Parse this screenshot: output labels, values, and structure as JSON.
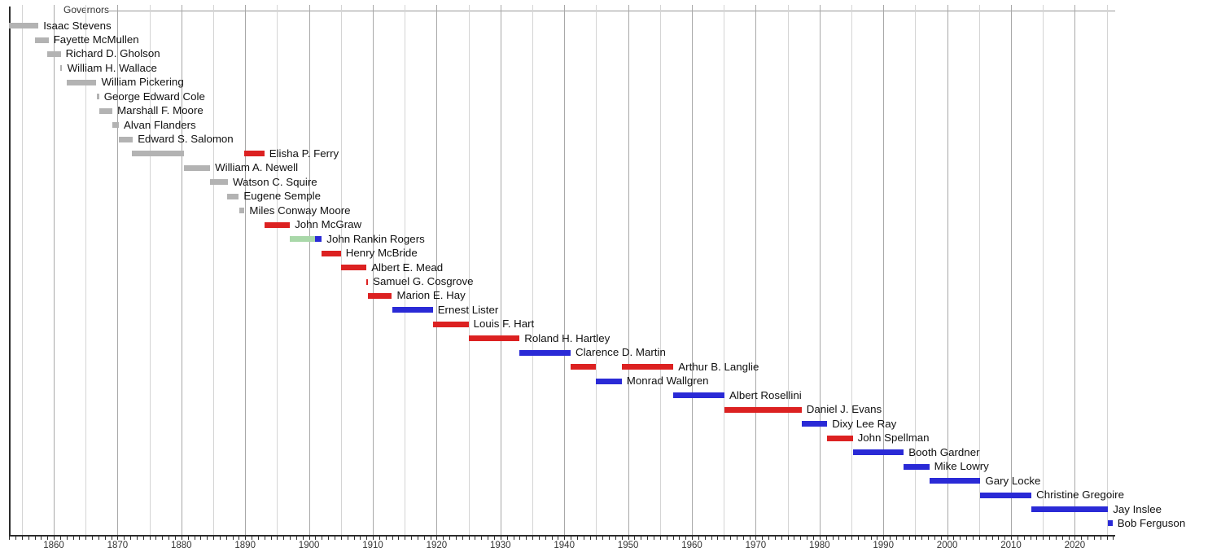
{
  "title": {
    "label": "Governors"
  },
  "colors": {
    "territorial": "#b3b3b3",
    "republican": "#dc2121",
    "democratic": "#2a2ad6",
    "populist": "#a9d8a9",
    "axis": "#2b2b2b",
    "gridline_minor": "#d4d4d4",
    "gridline_decade": "#a8a8a8"
  },
  "chart_data": {
    "type": "bar",
    "subtype": "gantt-timeline",
    "title": "Governors",
    "orientation": "horizontal",
    "xlabel": "",
    "ylabel": "",
    "x_range": [
      1853,
      2026
    ],
    "grid": "vertical, every 5 years (decade lines darker)",
    "x_tick_labels": [
      1860,
      1870,
      1880,
      1890,
      1900,
      1910,
      1920,
      1930,
      1940,
      1950,
      1960,
      1970,
      1980,
      1990,
      2000,
      2010,
      2020
    ],
    "minor_ticks_every_years": 1,
    "legend_position": "none",
    "party_color_key": {
      "territorial": "gray",
      "republican": "red",
      "democratic": "blue",
      "populist": "light-green"
    },
    "rows": [
      {
        "name": "Isaac Stevens",
        "segments": [
          {
            "start": 1853.0,
            "end": 1857.6,
            "party": "territorial"
          }
        ]
      },
      {
        "name": "Fayette McMullen",
        "segments": [
          {
            "start": 1857.0,
            "end": 1859.2,
            "party": "territorial"
          }
        ]
      },
      {
        "name": "Richard D. Gholson",
        "segments": [
          {
            "start": 1859.0,
            "end": 1861.1,
            "party": "territorial"
          }
        ]
      },
      {
        "name": "William H. Wallace",
        "segments": [
          {
            "start": 1861.0,
            "end": 1861.35,
            "party": "territorial"
          }
        ]
      },
      {
        "name": "William Pickering",
        "segments": [
          {
            "start": 1862.0,
            "end": 1866.7,
            "party": "territorial"
          }
        ]
      },
      {
        "name": "George Edward Cole",
        "segments": [
          {
            "start": 1866.7,
            "end": 1867.1,
            "party": "territorial"
          }
        ]
      },
      {
        "name": "Marshall F. Moore",
        "segments": [
          {
            "start": 1867.2,
            "end": 1869.2,
            "party": "territorial"
          }
        ]
      },
      {
        "name": "Alvan Flanders",
        "segments": [
          {
            "start": 1869.2,
            "end": 1870.2,
            "party": "territorial"
          }
        ]
      },
      {
        "name": "Edward S. Salomon",
        "segments": [
          {
            "start": 1870.2,
            "end": 1872.4,
            "party": "territorial"
          }
        ]
      },
      {
        "name": "Elisha P. Ferry",
        "segments": [
          {
            "start": 1872.3,
            "end": 1880.4,
            "party": "territorial"
          },
          {
            "start": 1889.9,
            "end": 1893.0,
            "party": "republican"
          }
        ]
      },
      {
        "name": "William A. Newell",
        "segments": [
          {
            "start": 1880.4,
            "end": 1884.5,
            "party": "territorial"
          }
        ]
      },
      {
        "name": "Watson C. Squire",
        "segments": [
          {
            "start": 1884.5,
            "end": 1887.3,
            "party": "territorial"
          }
        ]
      },
      {
        "name": "Eugene Semple",
        "segments": [
          {
            "start": 1887.2,
            "end": 1889.0,
            "party": "territorial"
          }
        ]
      },
      {
        "name": "Miles Conway Moore",
        "segments": [
          {
            "start": 1889.1,
            "end": 1889.9,
            "party": "territorial"
          }
        ]
      },
      {
        "name": "John McGraw",
        "segments": [
          {
            "start": 1893.0,
            "end": 1897.0,
            "party": "republican"
          }
        ]
      },
      {
        "name": "John Rankin Rogers",
        "segments": [
          {
            "start": 1897.0,
            "end": 1901.0,
            "party": "populist"
          },
          {
            "start": 1901.0,
            "end": 1902.0,
            "party": "democratic"
          }
        ]
      },
      {
        "name": "Henry McBride",
        "segments": [
          {
            "start": 1901.9,
            "end": 1905.0,
            "party": "republican"
          }
        ]
      },
      {
        "name": "Albert E. Mead",
        "segments": [
          {
            "start": 1905.0,
            "end": 1909.0,
            "party": "republican"
          }
        ]
      },
      {
        "name": "Samuel G. Cosgrove",
        "segments": [
          {
            "start": 1909.0,
            "end": 1909.25,
            "party": "republican"
          }
        ]
      },
      {
        "name": "Marion E. Hay",
        "segments": [
          {
            "start": 1909.25,
            "end": 1913.0,
            "party": "republican"
          }
        ]
      },
      {
        "name": "Ernest Lister",
        "segments": [
          {
            "start": 1913.0,
            "end": 1919.4,
            "party": "democratic"
          }
        ]
      },
      {
        "name": "Louis F. Hart",
        "segments": [
          {
            "start": 1919.4,
            "end": 1925.0,
            "party": "republican"
          }
        ]
      },
      {
        "name": "Roland H. Hartley",
        "segments": [
          {
            "start": 1925.0,
            "end": 1933.0,
            "party": "republican"
          }
        ]
      },
      {
        "name": "Clarence D. Martin",
        "segments": [
          {
            "start": 1933.0,
            "end": 1941.0,
            "party": "democratic"
          }
        ]
      },
      {
        "name": "Arthur B. Langlie",
        "segments": [
          {
            "start": 1941.0,
            "end": 1945.0,
            "party": "republican"
          },
          {
            "start": 1949.0,
            "end": 1957.1,
            "party": "republican"
          }
        ]
      },
      {
        "name": "Monrad Wallgren",
        "segments": [
          {
            "start": 1945.0,
            "end": 1949.0,
            "party": "democratic"
          }
        ]
      },
      {
        "name": "Albert Rosellini",
        "segments": [
          {
            "start": 1957.1,
            "end": 1965.1,
            "party": "democratic"
          }
        ]
      },
      {
        "name": "Daniel J. Evans",
        "segments": [
          {
            "start": 1965.1,
            "end": 1977.2,
            "party": "republican"
          }
        ]
      },
      {
        "name": "Dixy Lee Ray",
        "segments": [
          {
            "start": 1977.2,
            "end": 1981.2,
            "party": "democratic"
          }
        ]
      },
      {
        "name": "John Spellman",
        "segments": [
          {
            "start": 1981.2,
            "end": 1985.2,
            "party": "republican"
          }
        ]
      },
      {
        "name": "Booth Gardner",
        "segments": [
          {
            "start": 1985.2,
            "end": 1993.2,
            "party": "democratic"
          }
        ]
      },
      {
        "name": "Mike Lowry",
        "segments": [
          {
            "start": 1993.2,
            "end": 1997.2,
            "party": "democratic"
          }
        ]
      },
      {
        "name": "Gary Locke",
        "segments": [
          {
            "start": 1997.2,
            "end": 2005.2,
            "party": "democratic"
          }
        ]
      },
      {
        "name": "Christine Gregoire",
        "segments": [
          {
            "start": 2005.2,
            "end": 2013.2,
            "party": "democratic"
          }
        ]
      },
      {
        "name": "Jay Inslee",
        "segments": [
          {
            "start": 2013.2,
            "end": 2025.2,
            "party": "democratic"
          }
        ]
      },
      {
        "name": "Bob Ferguson",
        "segments": [
          {
            "start": 2025.2,
            "end": 2025.9,
            "party": "democratic"
          }
        ]
      }
    ]
  }
}
